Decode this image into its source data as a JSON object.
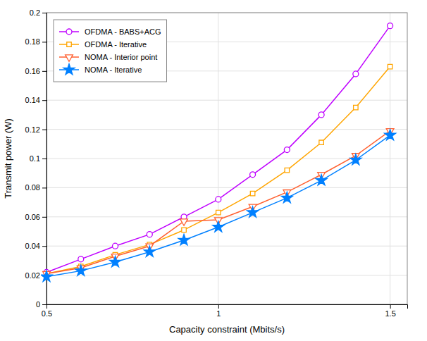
{
  "chart_data": {
    "type": "line",
    "x_label": "Capacity constraint (Mbits/s)",
    "y_label": "Transmit power (W)",
    "x": [
      0.5,
      0.6,
      0.7,
      0.8,
      0.9,
      1.0,
      1.1,
      1.2,
      1.3,
      1.4,
      1.5
    ],
    "series": [
      {
        "name": "OFDMA - BABS+ACG",
        "color": "#BF00FF",
        "marker": "circle",
        "values": [
          0.022,
          0.031,
          0.04,
          0.048,
          0.06,
          0.072,
          0.089,
          0.106,
          0.13,
          0.158,
          0.191
        ]
      },
      {
        "name": "OFDMA - Iterative",
        "color": "#FFA500",
        "marker": "square",
        "values": [
          0.021,
          0.026,
          0.034,
          0.041,
          0.051,
          0.063,
          0.076,
          0.092,
          0.111,
          0.135,
          0.163
        ]
      },
      {
        "name": "NOMA - Interior point",
        "color": "#FF6030",
        "marker": "triangle-down",
        "values": [
          0.021,
          0.025,
          0.033,
          0.04,
          0.057,
          0.058,
          0.067,
          0.077,
          0.089,
          0.102,
          0.119
        ]
      },
      {
        "name": "NOMA - Iterative",
        "color": "#0080FF",
        "marker": "star",
        "values": [
          0.019,
          0.023,
          0.029,
          0.036,
          0.044,
          0.053,
          0.063,
          0.073,
          0.085,
          0.099,
          0.116
        ]
      }
    ],
    "xlim": [
      0.5,
      1.55
    ],
    "ylim": [
      0,
      0.2
    ],
    "xticks": [
      0.5,
      1,
      1.5
    ],
    "yticks": [
      0,
      0.02,
      0.04,
      0.06,
      0.08,
      0.1,
      0.12,
      0.14,
      0.16,
      0.18,
      0.2
    ],
    "grid": true,
    "legend": "upper-left"
  }
}
